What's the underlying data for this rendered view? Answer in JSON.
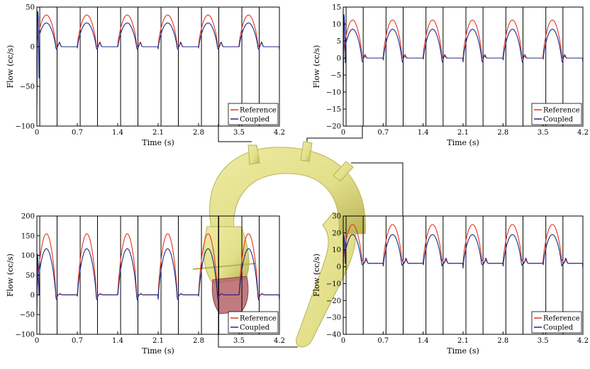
{
  "colors": {
    "reference": "#e8321e",
    "coupled": "#1b2a8a",
    "aorta": "#e2df8a",
    "aorta_dark": "#b9b355",
    "inlet": "#b5646a"
  },
  "chart_data": [
    {
      "id": "top-left",
      "type": "line",
      "xlabel": "Time (s)",
      "ylabel": "Flow (cc/s)",
      "xlim": [
        0,
        4.2
      ],
      "ylim": [
        -100,
        50
      ],
      "xticks": [
        "0",
        "0.7",
        "1.4",
        "2.1",
        "2.8",
        "3.5",
        "4.2"
      ],
      "yticks": [
        "50",
        "0",
        "−50",
        "−100"
      ],
      "ytick_values": [
        50,
        0,
        -50,
        -100
      ],
      "period": 0.7,
      "vlines": [
        0.05,
        0.35
      ],
      "series": [
        {
          "name": "Reference",
          "peak": 40,
          "dip": 0,
          "bump": 6,
          "bump_t": 0.39,
          "plateau": 0
        },
        {
          "name": "Coupled",
          "peak": 30,
          "dip": -3,
          "bump": 5,
          "bump_t": 0.39,
          "plateau": 0
        }
      ],
      "startup": {
        "series": "Coupled",
        "values": [
          -80,
          50,
          35,
          -50,
          30
        ]
      },
      "legend": "bottom-right"
    },
    {
      "id": "top-right",
      "type": "line",
      "xlabel": "Time (s)",
      "ylabel": "Flow (cc/s)",
      "xlim": [
        0,
        4.2
      ],
      "ylim": [
        -20,
        15
      ],
      "xticks": [
        "0",
        "0.7",
        "1.4",
        "2.1",
        "2.8",
        "3.5",
        "4.2"
      ],
      "yticks": [
        "15",
        "10",
        "5",
        "0",
        "−5",
        "−10",
        "−15",
        "−20"
      ],
      "ytick_values": [
        15,
        10,
        5,
        0,
        -5,
        -10,
        -15,
        -20
      ],
      "period": 0.7,
      "vlines": [
        0.05,
        0.35
      ],
      "series": [
        {
          "name": "Reference",
          "peak": 11.2,
          "dip": 0,
          "bump": 0.5,
          "bump_t": 0.38,
          "plateau": 0
        },
        {
          "name": "Coupled",
          "peak": 8.5,
          "dip": -1.2,
          "bump": 1.0,
          "bump_t": 0.38,
          "plateau": 0
        }
      ],
      "startup": {
        "series": "Coupled",
        "values": [
          -14,
          14,
          10,
          -3,
          8
        ]
      },
      "legend": "bottom-right"
    },
    {
      "id": "bottom-left",
      "type": "line",
      "xlabel": "Time (s)",
      "ylabel": "Flow (cc/s)",
      "xlim": [
        0,
        4.2
      ],
      "ylim": [
        -100,
        200
      ],
      "xticks": [
        "0",
        "0.7",
        "1.4",
        "2.1",
        "2.8",
        "3.5",
        "4.2"
      ],
      "yticks": [
        "200",
        "150",
        "100",
        "50",
        "0",
        "−50",
        "−100"
      ],
      "ytick_values": [
        200,
        150,
        100,
        50,
        0,
        -50,
        -100
      ],
      "period": 0.7,
      "vlines": [
        0.05,
        0.35
      ],
      "series": [
        {
          "name": "Reference",
          "peak": 155,
          "dip": -5,
          "bump": 2,
          "bump_t": 0.4,
          "plateau": 0
        },
        {
          "name": "Coupled",
          "peak": 117,
          "dip": -12,
          "bump": 3,
          "bump_t": 0.4,
          "plateau": 0
        }
      ],
      "startup": {
        "series": "Coupled",
        "values": [
          -50,
          110,
          60,
          -10,
          80
        ]
      },
      "legend": "bottom-right"
    },
    {
      "id": "bottom-right",
      "type": "line",
      "xlabel": "Time (s)",
      "ylabel": "Flow (cc/s)",
      "xlim": [
        0,
        4.2
      ],
      "ylim": [
        -40,
        30
      ],
      "xticks": [
        "0",
        "0.7",
        "1.4",
        "2.1",
        "2.8",
        "3.5",
        "4.2"
      ],
      "yticks": [
        "30",
        "20",
        "10",
        "0",
        "−10",
        "−20",
        "−30",
        "−40"
      ],
      "ytick_values": [
        30,
        20,
        10,
        0,
        -10,
        -20,
        -30,
        -40
      ],
      "period": 0.7,
      "vlines": [
        0.05,
        0.35
      ],
      "series": [
        {
          "name": "Reference",
          "peak": 25,
          "dip": 2,
          "bump": 2,
          "bump_t": 0.4,
          "plateau": 2
        },
        {
          "name": "Coupled",
          "peak": 19,
          "dip": -1,
          "bump": 3,
          "bump_t": 0.4,
          "plateau": 2
        }
      ],
      "startup": {
        "series": "Coupled",
        "values": [
          -5,
          20,
          15,
          0,
          18
        ]
      },
      "legend": "bottom-right"
    }
  ]
}
